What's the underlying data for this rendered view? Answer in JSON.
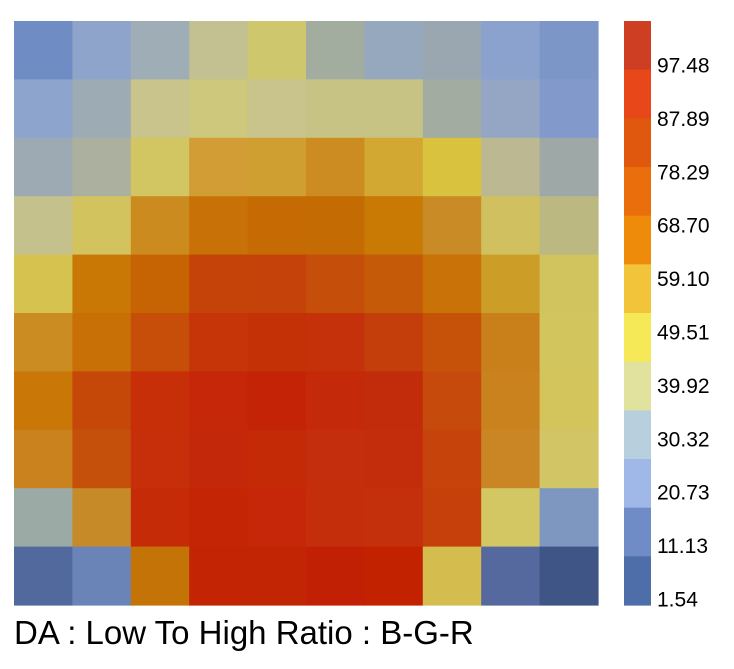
{
  "chart_data": {
    "type": "heatmap",
    "title": "DA : Low To High Ratio : B-G-R",
    "rows": 10,
    "cols": 10,
    "cell_colors": [
      [
        "#6f8cc4",
        "#8ea4cb",
        "#9fadb7",
        "#c3c091",
        "#cfc76d",
        "#a3ad9f",
        "#96a8bd",
        "#9aa7b1",
        "#8ba2cf",
        "#7d96c8"
      ],
      [
        "#8da4cd",
        "#9dabb5",
        "#c8c48b",
        "#cdc87c",
        "#c8c48b",
        "#c6c385",
        "#c7c385",
        "#a2aca1",
        "#94a6c4",
        "#829acb"
      ],
      [
        "#9eaab3",
        "#abb09f",
        "#d2c662",
        "#d19d34",
        "#cfa031",
        "#cd8c22",
        "#d2a732",
        "#d9c23e",
        "#bcb992",
        "#9ea8a7"
      ],
      [
        "#c5c18d",
        "#d2c35f",
        "#cc8b1f",
        "#c87106",
        "#c66b03",
        "#c46b03",
        "#c87a05",
        "#c98b25",
        "#d1c05f",
        "#bcb882"
      ],
      [
        "#d5c24f",
        "#c97806",
        "#c66404",
        "#c54208",
        "#c5420a",
        "#c54e0b",
        "#c55b08",
        "#c87207",
        "#cc9e28",
        "#d1c35e"
      ],
      [
        "#cb8c22",
        "#c86f06",
        "#c74e08",
        "#c63507",
        "#c53107",
        "#c4310a",
        "#c33e0b",
        "#c6520a",
        "#c9801a",
        "#d3c55e"
      ],
      [
        "#c97707",
        "#c64809",
        "#c72f09",
        "#c52708",
        "#c42405",
        "#c4290a",
        "#c22c0b",
        "#c64a0b",
        "#ca821f",
        "#d3c45b"
      ],
      [
        "#c9821e",
        "#c5500c",
        "#c62f0a",
        "#c4280b",
        "#c52a07",
        "#c52e0c",
        "#c32d0b",
        "#c6430b",
        "#ca8525",
        "#d2c566"
      ],
      [
        "#9caaa5",
        "#c68a28",
        "#c62b07",
        "#c42605",
        "#c52708",
        "#c52e0b",
        "#c4300c",
        "#c6400b",
        "#d3c763",
        "#7e97c1"
      ],
      [
        "#52699e",
        "#6a84b8",
        "#c47307",
        "#c22404",
        "#c22504",
        "#c22005",
        "#c32201",
        "#d4bc4e",
        "#55699f",
        "#3f5585"
      ]
    ],
    "legend": {
      "colors": [
        "#ce3e22",
        "#e8471a",
        "#e0570e",
        "#ea6e0b",
        "#ee8b0a",
        "#f2c43a",
        "#f6e957",
        "#e0e29d",
        "#b8cfdd",
        "#9fb8e8",
        "#6f8cc7",
        "#4e6ea9"
      ],
      "tick_labels": [
        "97.48",
        "87.89",
        "78.29",
        "68.70",
        "59.10",
        "49.51",
        "39.92",
        "30.32",
        "20.73",
        "11.13",
        "1.54"
      ]
    }
  }
}
